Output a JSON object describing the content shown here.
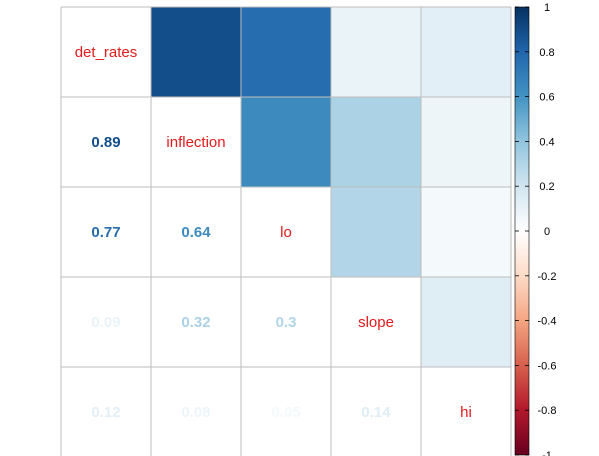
{
  "chart_data": {
    "type": "heatmap",
    "variables": [
      "det_rates",
      "inflection",
      "lo",
      "slope",
      "hi"
    ],
    "matrix": [
      [
        1,
        0.89,
        0.77,
        0.09,
        0.12
      ],
      [
        0.89,
        1,
        0.64,
        0.32,
        0.08
      ],
      [
        0.77,
        0.64,
        1,
        0.3,
        0.05
      ],
      [
        0.09,
        0.32,
        0.3,
        1,
        0.14
      ],
      [
        0.12,
        0.08,
        0.05,
        0.14,
        1
      ]
    ],
    "value_labels": [
      [
        "",
        "",
        "",
        "",
        ""
      ],
      [
        "0.89",
        "",
        "",
        "",
        ""
      ],
      [
        "0.77",
        "0.64",
        "",
        "",
        ""
      ],
      [
        "0.09",
        "0.32",
        "0.3",
        "",
        ""
      ],
      [
        "0.12",
        "0.08",
        "0.05",
        "0.14",
        ""
      ]
    ],
    "layout": "lower triangle: numbers, upper triangle: colored squares, diagonal: variable names",
    "colorbar": {
      "range": [
        -1,
        1
      ],
      "ticks": [
        "-1",
        "-0.8",
        "-0.6",
        "-0.4",
        "-0.2",
        "0",
        "0.2",
        "0.4",
        "0.6",
        "0.8",
        "1"
      ],
      "colors": [
        "#67001F",
        "#B2182B",
        "#D6604D",
        "#F4A582",
        "#FDDBC7",
        "#FFFFFF",
        "#D1E5F0",
        "#92C5DE",
        "#4393C3",
        "#2166AC",
        "#053061"
      ]
    },
    "label_color": "#e41a1c"
  }
}
